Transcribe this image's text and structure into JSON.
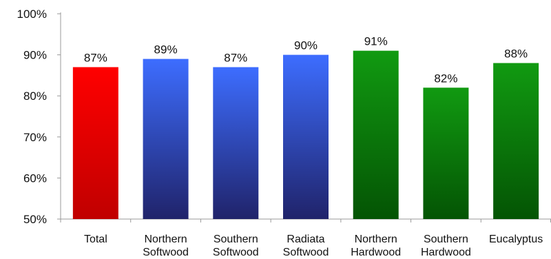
{
  "chart_data": {
    "type": "bar",
    "categories": [
      [
        "Total"
      ],
      [
        "Northern",
        "Softwood"
      ],
      [
        "Southern",
        "Softwood"
      ],
      [
        "Radiata",
        "Softwood"
      ],
      [
        "Northern",
        "Hardwood"
      ],
      [
        "Southern",
        "Hardwood"
      ],
      [
        "Eucalyptus"
      ]
    ],
    "values": [
      87,
      89,
      87,
      90,
      91,
      82,
      88
    ],
    "data_labels": [
      "87%",
      "89%",
      "87%",
      "90%",
      "91%",
      "82%",
      "88%"
    ],
    "bar_color_groups": [
      "red",
      "blue",
      "blue",
      "blue",
      "green",
      "green",
      "green"
    ],
    "ylim": [
      50,
      100
    ],
    "yticks": [
      50,
      60,
      70,
      80,
      90,
      100
    ],
    "ytick_labels": [
      "50%",
      "60%",
      "70%",
      "80%",
      "90%",
      "100%"
    ],
    "grid": false,
    "legend": "none",
    "colors": {
      "red": [
        "#ff0000",
        "#c00000"
      ],
      "blue": [
        "#3d6dff",
        "#20236a"
      ],
      "green": [
        "#119a11",
        "#045404"
      ],
      "axis": "#999999",
      "text": "#111111"
    }
  }
}
